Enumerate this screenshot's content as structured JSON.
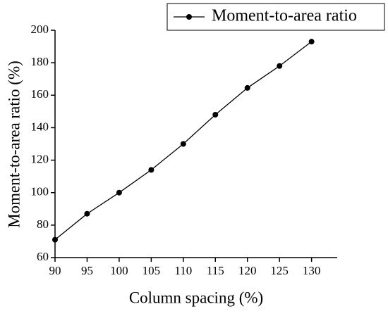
{
  "chart_data": {
    "type": "line",
    "x_label": "Column spacing (%)",
    "y_label": "Moment-to-area ratio (%)",
    "x": [
      90,
      95,
      100,
      105,
      110,
      115,
      120,
      125,
      130
    ],
    "series": [
      {
        "name": "Moment-to-area ratio",
        "color": "#000000",
        "values": [
          71,
          87,
          100,
          114,
          130,
          148,
          164.5,
          178,
          193
        ]
      }
    ],
    "xlim": [
      90,
      134
    ],
    "xticks": [
      90,
      95,
      100,
      105,
      110,
      115,
      120,
      125,
      130
    ],
    "ylim": [
      60,
      200
    ],
    "yticks": [
      60,
      80,
      100,
      120,
      140,
      160,
      180,
      200
    ],
    "grid": false,
    "legend": "top-right"
  }
}
